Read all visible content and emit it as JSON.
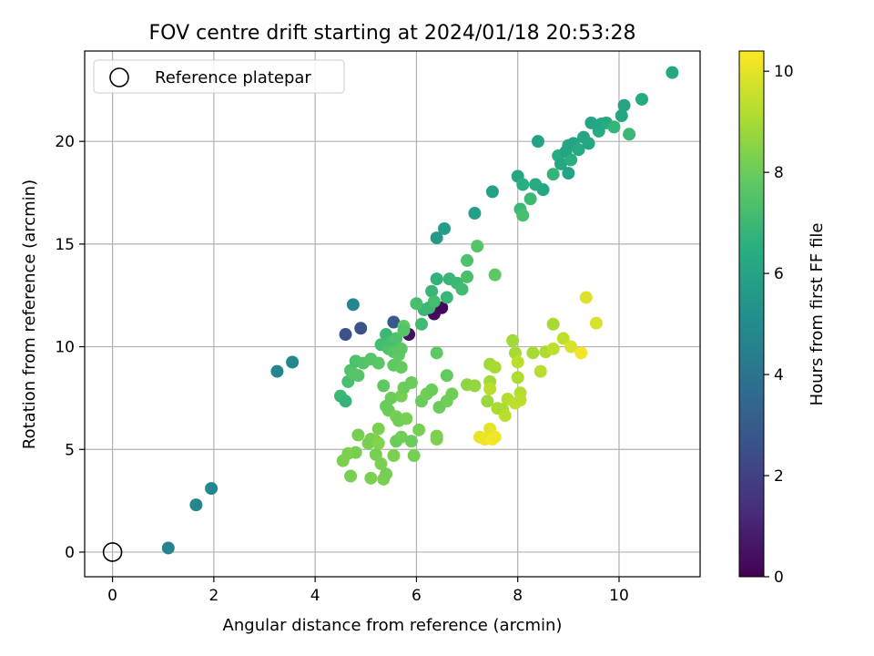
{
  "chart_data": {
    "type": "scatter",
    "title": "FOV centre drift starting at 2024/01/18 20:53:28",
    "xlabel": "Angular distance from reference (arcmin)",
    "ylabel": "Rotation from reference (arcmin)",
    "xlim": [
      -0.55,
      11.6
    ],
    "ylim": [
      -1.2,
      24.4
    ],
    "xticks": [
      0,
      2,
      4,
      6,
      8,
      10
    ],
    "yticks": [
      0,
      5,
      10,
      15,
      20
    ],
    "grid": true,
    "legend": {
      "position": "top-left",
      "entries": [
        {
          "label": "Reference platepar",
          "marker": "open-circle"
        }
      ]
    },
    "reference_point": {
      "x": 0,
      "y": 0
    },
    "colorbar": {
      "label": "Hours from first FF file",
      "min": 0,
      "max": 10.4,
      "ticks": [
        0,
        2,
        4,
        6,
        8,
        10
      ],
      "colormap": "viridis"
    },
    "points": [
      [
        1.1,
        0.2,
        4.6
      ],
      [
        1.65,
        2.3,
        4.8
      ],
      [
        1.95,
        3.1,
        4.8
      ],
      [
        3.25,
        8.8,
        4.7
      ],
      [
        3.55,
        9.25,
        4.75
      ],
      [
        4.6,
        10.6,
        2.6
      ],
      [
        4.9,
        10.9,
        2.7
      ],
      [
        5.55,
        11.2,
        2.9
      ],
      [
        5.85,
        10.6,
        0.5
      ],
      [
        6.35,
        11.6,
        0.3
      ],
      [
        6.5,
        11.9,
        0.2
      ],
      [
        4.75,
        12.05,
        4.8
      ],
      [
        6.15,
        11.8,
        6.9
      ],
      [
        6.25,
        11.9,
        7.0
      ],
      [
        6.1,
        11.1,
        7.1
      ],
      [
        6.0,
        12.1,
        7.3
      ],
      [
        6.3,
        12.7,
        6.9
      ],
      [
        6.4,
        13.3,
        6.7
      ],
      [
        6.35,
        12.2,
        7.2
      ],
      [
        6.6,
        12.4,
        6.9
      ],
      [
        6.65,
        13.3,
        6.9
      ],
      [
        6.8,
        13.1,
        7.0
      ],
      [
        6.9,
        12.8,
        7.1
      ],
      [
        7.0,
        13.4,
        7.3
      ],
      [
        7.0,
        14.2,
        7.4
      ],
      [
        7.2,
        14.9,
        7.6
      ],
      [
        7.55,
        13.5,
        7.8
      ],
      [
        6.4,
        15.3,
        5.6
      ],
      [
        6.55,
        15.75,
        5.7
      ],
      [
        7.15,
        16.5,
        5.8
      ],
      [
        7.5,
        17.55,
        5.9
      ],
      [
        8.0,
        18.3,
        6.1
      ],
      [
        8.1,
        17.9,
        6.5
      ],
      [
        8.05,
        16.7,
        7.0
      ],
      [
        8.1,
        16.4,
        7.3
      ],
      [
        8.25,
        17.2,
        7.0
      ],
      [
        8.35,
        17.9,
        6.3
      ],
      [
        8.5,
        17.65,
        6.2
      ],
      [
        8.7,
        18.4,
        6.8
      ],
      [
        8.8,
        19.3,
        6.4
      ],
      [
        8.85,
        18.9,
        6.2
      ],
      [
        8.95,
        19.5,
        6.0
      ],
      [
        9.0,
        19.8,
        6.1
      ],
      [
        9.05,
        19.1,
        6.5
      ],
      [
        9.1,
        19.9,
        6.0
      ],
      [
        9.2,
        19.6,
        6.3
      ],
      [
        9.3,
        20.2,
        6.1
      ],
      [
        9.0,
        18.45,
        6.0
      ],
      [
        9.4,
        19.9,
        6.2
      ],
      [
        9.45,
        20.9,
        6.1
      ],
      [
        9.6,
        20.5,
        6.4
      ],
      [
        9.65,
        20.85,
        6.2
      ],
      [
        9.75,
        20.9,
        6.3
      ],
      [
        9.9,
        20.7,
        6.8
      ],
      [
        10.05,
        21.25,
        6.1
      ],
      [
        10.1,
        21.75,
        6.0
      ],
      [
        10.2,
        20.35,
        7.0
      ],
      [
        10.45,
        22.05,
        6.3
      ],
      [
        8.4,
        20.0,
        5.9
      ],
      [
        11.05,
        23.35,
        6.2
      ],
      [
        4.5,
        7.6,
        7.0
      ],
      [
        4.6,
        7.35,
        6.8
      ],
      [
        4.65,
        8.3,
        7.3
      ],
      [
        4.7,
        8.85,
        7.4
      ],
      [
        4.75,
        8.7,
        7.6
      ],
      [
        4.8,
        9.3,
        7.4
      ],
      [
        4.85,
        8.6,
        7.6
      ],
      [
        4.95,
        9.2,
        7.5
      ],
      [
        5.1,
        9.4,
        7.6
      ],
      [
        5.25,
        9.2,
        7.7
      ],
      [
        5.3,
        10.1,
        7.2
      ],
      [
        5.4,
        10.6,
        7.0
      ],
      [
        5.45,
        9.9,
        7.4
      ],
      [
        5.5,
        10.2,
        7.3
      ],
      [
        5.55,
        9.75,
        7.6
      ],
      [
        5.6,
        10.4,
        7.4
      ],
      [
        5.65,
        9.6,
        7.8
      ],
      [
        5.7,
        9.9,
        7.7
      ],
      [
        5.75,
        11.0,
        7.8
      ],
      [
        5.75,
        10.8,
        7.6
      ],
      [
        5.55,
        9.1,
        7.8
      ],
      [
        5.7,
        9.0,
        7.9
      ],
      [
        5.35,
        8.1,
        7.8
      ],
      [
        5.4,
        7.1,
        8.0
      ],
      [
        5.45,
        6.9,
        8.0
      ],
      [
        5.5,
        7.5,
        8.0
      ],
      [
        5.6,
        6.6,
        8.2
      ],
      [
        5.65,
        6.4,
        8.1
      ],
      [
        5.7,
        7.6,
        8.2
      ],
      [
        5.75,
        8.0,
        8.0
      ],
      [
        5.8,
        6.5,
        8.2
      ],
      [
        5.9,
        8.25,
        8.0
      ],
      [
        6.1,
        7.35,
        8.0
      ],
      [
        6.2,
        7.7,
        8.1
      ],
      [
        6.3,
        7.9,
        8.0
      ],
      [
        6.4,
        9.7,
        7.8
      ],
      [
        6.45,
        7.05,
        8.0
      ],
      [
        6.6,
        7.35,
        8.1
      ],
      [
        6.6,
        8.6,
        7.9
      ],
      [
        6.7,
        7.7,
        8.1
      ],
      [
        5.6,
        5.4,
        8.0
      ],
      [
        5.7,
        5.6,
        8.1
      ],
      [
        5.9,
        5.4,
        8.0
      ],
      [
        5.95,
        4.7,
        8.2
      ],
      [
        6.05,
        5.95,
        8.2
      ],
      [
        6.4,
        5.5,
        8.3
      ],
      [
        6.4,
        5.65,
        8.3
      ],
      [
        5.55,
        4.7,
        8.3
      ],
      [
        5.25,
        6.0,
        8.3
      ],
      [
        5.2,
        5.4,
        8.3
      ],
      [
        5.1,
        5.5,
        8.3
      ],
      [
        5.05,
        5.3,
        8.2
      ],
      [
        5.25,
        5.3,
        8.4
      ],
      [
        5.2,
        4.75,
        8.2
      ],
      [
        5.3,
        4.3,
        8.3
      ],
      [
        5.1,
        3.6,
        8.3
      ],
      [
        5.35,
        3.55,
        8.3
      ],
      [
        5.4,
        3.8,
        8.2
      ],
      [
        4.85,
        5.7,
        8.2
      ],
      [
        4.8,
        4.85,
        8.2
      ],
      [
        4.65,
        4.8,
        8.3
      ],
      [
        4.55,
        4.45,
        8.3
      ],
      [
        4.7,
        3.7,
        8.2
      ],
      [
        7.0,
        8.15,
        8.6
      ],
      [
        7.15,
        8.1,
        8.7
      ],
      [
        7.4,
        7.35,
        8.8
      ],
      [
        7.45,
        8.3,
        8.9
      ],
      [
        7.45,
        9.15,
        8.9
      ],
      [
        7.55,
        9.0,
        9.0
      ],
      [
        7.6,
        7.0,
        9.1
      ],
      [
        7.7,
        6.95,
        9.0
      ],
      [
        7.75,
        6.65,
        9.3
      ],
      [
        7.8,
        7.45,
        9.2
      ],
      [
        7.9,
        10.3,
        8.9
      ],
      [
        7.95,
        9.7,
        9.0
      ],
      [
        7.95,
        7.25,
        9.4
      ],
      [
        8.0,
        8.5,
        9.1
      ],
      [
        8.0,
        9.25,
        9.3
      ],
      [
        8.05,
        7.75,
        9.2
      ],
      [
        8.05,
        7.4,
        9.3
      ],
      [
        8.3,
        9.7,
        9.0
      ],
      [
        8.45,
        8.8,
        9.3
      ],
      [
        8.55,
        9.75,
        9.1
      ],
      [
        8.7,
        11.1,
        9.0
      ],
      [
        8.7,
        9.9,
        9.4
      ],
      [
        8.9,
        10.4,
        9.4
      ],
      [
        9.05,
        10.0,
        9.8
      ],
      [
        9.25,
        9.7,
        10.2
      ],
      [
        9.35,
        12.4,
        9.9
      ],
      [
        9.55,
        11.15,
        9.8
      ],
      [
        7.25,
        5.6,
        10.0
      ],
      [
        7.35,
        5.5,
        10.1
      ],
      [
        7.45,
        6.0,
        10.0
      ],
      [
        7.5,
        5.5,
        10.3
      ],
      [
        7.55,
        5.6,
        10.2
      ],
      [
        7.45,
        7.95,
        9.3
      ]
    ]
  }
}
